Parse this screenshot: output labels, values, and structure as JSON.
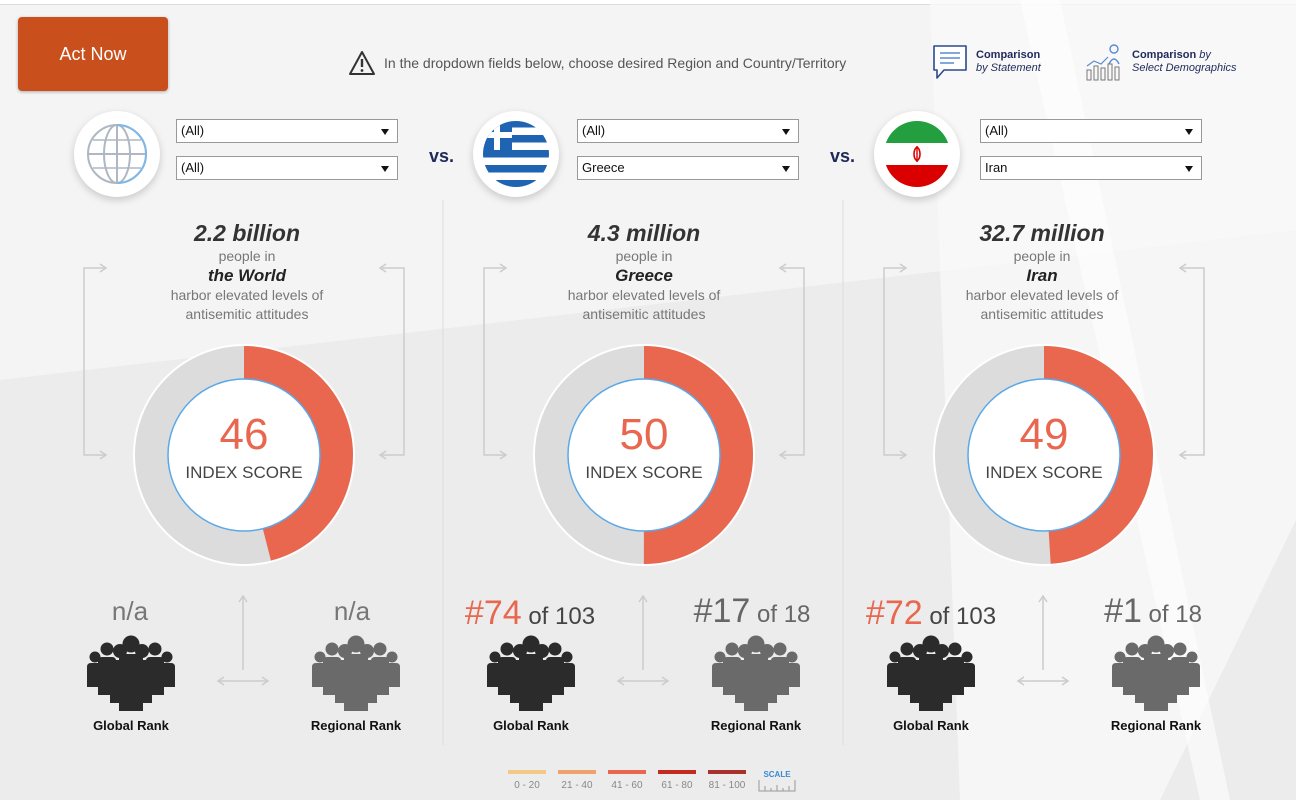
{
  "header": {
    "act_button": "Act Now",
    "hint": "In the dropdown fields below,  choose desired Region and Country/Territory",
    "comparison_statement": {
      "line1": "Comparison",
      "line2": "by Statement"
    },
    "comparison_demographics": {
      "line1a": "Comparison",
      "line1b": " by",
      "line2": "Select Demographics"
    }
  },
  "vs_label": "vs.",
  "panels": [
    {
      "region": "(All)",
      "country": "(All)",
      "count": "2.2 billion",
      "people_in": "people in",
      "place": "the World",
      "desc1": "harbor elevated levels of",
      "desc2": "antisemitic attitudes",
      "score": "46",
      "score_fraction": 0.46,
      "score_label": "INDEX SCORE",
      "global_rank": "n/a",
      "global_of": "",
      "regional_rank": "n/a",
      "regional_of": "",
      "global_label": "Global Rank",
      "regional_label": "Regional Rank"
    },
    {
      "region": "(All)",
      "country": "Greece",
      "count": "4.3 million",
      "people_in": "people in",
      "place": "Greece",
      "desc1": "harbor elevated levels of",
      "desc2": "antisemitic attitudes",
      "score": "50",
      "score_fraction": 0.5,
      "score_label": "INDEX SCORE",
      "global_rank": "#74",
      "global_of": " of 103",
      "regional_rank": "#17",
      "regional_of": " of 18",
      "global_label": "Global Rank",
      "regional_label": "Regional Rank"
    },
    {
      "region": "(All)",
      "country": "Iran",
      "count": "32.7 million",
      "people_in": "people in",
      "place": "Iran",
      "desc1": "harbor elevated levels of",
      "desc2": "antisemitic attitudes",
      "score": "49",
      "score_fraction": 0.49,
      "score_label": "INDEX SCORE",
      "global_rank": "#72",
      "global_of": " of 103",
      "regional_rank": "#1",
      "regional_of": " of 18",
      "global_label": "Global Rank",
      "regional_label": "Regional Rank"
    }
  ],
  "scale": {
    "items": [
      {
        "label": "0 - 20",
        "color": "#f3c987"
      },
      {
        "label": "21 - 40",
        "color": "#efa16e"
      },
      {
        "label": "41 - 60",
        "color": "#e8674e"
      },
      {
        "label": "61 - 80",
        "color": "#c42b1f"
      },
      {
        "label": "81 - 100",
        "color": "#a8332e"
      }
    ],
    "icon_label": "SCALE"
  },
  "colors": {
    "accent": "#e8674e",
    "track": "#dcdcdc",
    "navy": "#1f2a5a",
    "button": "#c9501c"
  }
}
